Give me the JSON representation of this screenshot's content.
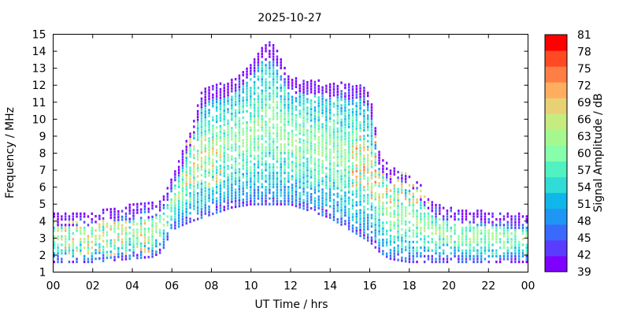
{
  "chart_data": {
    "type": "heatmap",
    "title": "2025-10-27",
    "xlabel": "UT Time / hrs",
    "ylabel": "Frequency / MHz",
    "xlim": [
      0,
      24
    ],
    "ylim": [
      1,
      15
    ],
    "x_ticks": [
      "00",
      "02",
      "04",
      "06",
      "08",
      "10",
      "12",
      "14",
      "16",
      "18",
      "20",
      "22",
      "00"
    ],
    "y_ticks": [
      "1",
      "2",
      "3",
      "4",
      "5",
      "6",
      "7",
      "8",
      "9",
      "10",
      "11",
      "12",
      "13",
      "14",
      "15"
    ],
    "colorbar": {
      "label": "Signal Amplitude / dB",
      "ticks": [
        "39",
        "42",
        "45",
        "48",
        "51",
        "54",
        "57",
        "60",
        "63",
        "66",
        "69",
        "72",
        "75",
        "78",
        "81"
      ],
      "range": [
        39,
        81
      ],
      "colors": [
        "#7f00ff",
        "#5a3cfe",
        "#3a6afb",
        "#1d97f3",
        "#0fb6ea",
        "#30dcd5",
        "#50f2c2",
        "#86feaa",
        "#a6f88e",
        "#c6ec80",
        "#e8d175",
        "#ffae60",
        "#ff7e45",
        "#ff4a24",
        "#ff0000"
      ]
    },
    "upper_envelope_mhz": {
      "hours": [
        0,
        1,
        2,
        3,
        4,
        5,
        5.5,
        6,
        6.5,
        7,
        7.5,
        8,
        8.5,
        9,
        9.5,
        10,
        10.5,
        11,
        11.5,
        12,
        12.5,
        13,
        13.5,
        14,
        14.5,
        15,
        15.5,
        16,
        16.5,
        17,
        17.5,
        18,
        18.5,
        19,
        20,
        21,
        22,
        23,
        24
      ],
      "values": [
        4.5,
        4.6,
        4.5,
        4.8,
        5.0,
        5.1,
        5.3,
        6.5,
        8.0,
        9.5,
        11.6,
        12.1,
        12.1,
        12.3,
        12.8,
        13.3,
        14.2,
        14.6,
        13.7,
        12.4,
        12.4,
        12.3,
        12.3,
        12.2,
        12.2,
        12.1,
        12.1,
        11.6,
        8.0,
        7.2,
        7.0,
        6.8,
        6.3,
        5.3,
        4.8,
        4.7,
        4.6,
        4.5,
        4.4
      ]
    },
    "lower_envelope_mhz": {
      "hours": [
        0,
        2,
        4,
        5,
        5.5,
        6,
        7,
        8,
        9,
        10,
        11,
        12,
        13,
        14,
        15,
        16,
        16.5,
        17,
        18,
        19,
        20,
        22,
        24
      ],
      "values": [
        1.6,
        1.6,
        1.8,
        1.9,
        2.2,
        3.5,
        4.0,
        4.4,
        4.8,
        5.0,
        5.0,
        5.0,
        4.6,
        4.2,
        3.5,
        2.8,
        2.2,
        1.8,
        1.6,
        1.6,
        1.6,
        1.6,
        1.6
      ]
    },
    "peak_amplitude_zones": [
      {
        "hours": [
          0,
          5
        ],
        "mhz": [
          2,
          4
        ],
        "db": 69
      },
      {
        "hours": [
          6.5,
          8.5
        ],
        "mhz": [
          6,
          9
        ],
        "db": 69
      },
      {
        "hours": [
          15,
          16.5
        ],
        "mhz": [
          6,
          9
        ],
        "db": 72
      },
      {
        "hours": [
          16,
          19
        ],
        "mhz": [
          5,
          7
        ],
        "db": 70
      }
    ]
  }
}
